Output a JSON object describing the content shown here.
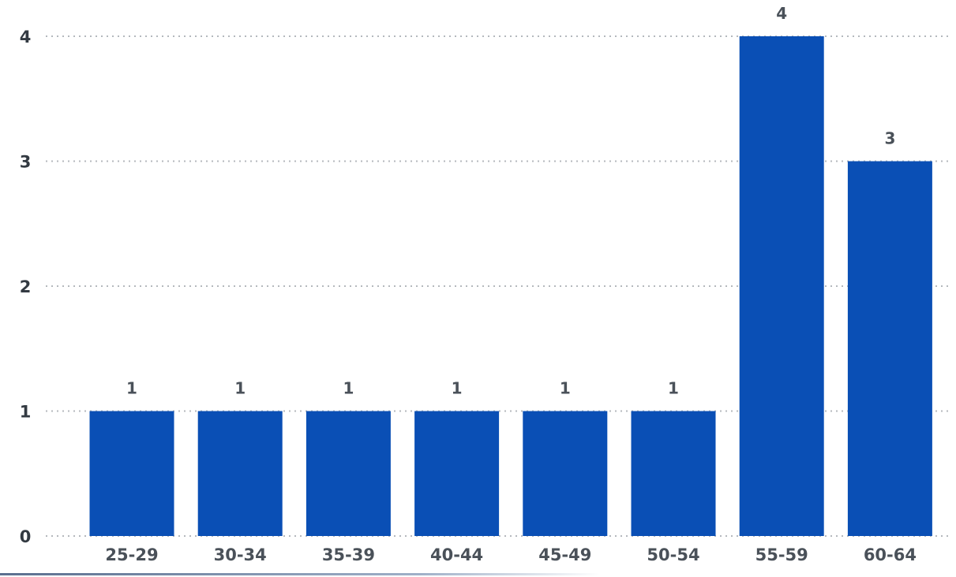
{
  "chart_data": {
    "type": "bar",
    "categories": [
      "25-29",
      "30-34",
      "35-39",
      "40-44",
      "45-49",
      "50-54",
      "55-59",
      "60-64"
    ],
    "values": [
      1,
      1,
      1,
      1,
      1,
      1,
      4,
      3
    ],
    "data_labels": [
      "1",
      "1",
      "1",
      "1",
      "1",
      "1",
      "4",
      "3"
    ],
    "y_ticks": [
      "0",
      "1",
      "2",
      "3",
      "4"
    ],
    "ylim": [
      0,
      4
    ],
    "grid": true,
    "grid_style": "dotted",
    "bar_color": "#0a4fb5",
    "title": "",
    "xlabel": "",
    "ylabel": ""
  }
}
